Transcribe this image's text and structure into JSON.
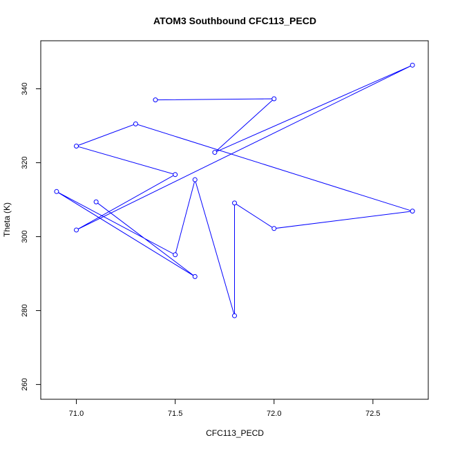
{
  "chart_data": {
    "type": "line",
    "title": "ATOM3 Southbound CFC113_PECD",
    "xlabel": "CFC113_PECD",
    "ylabel": "Theta (K)",
    "xlim": [
      70.82,
      72.78
    ],
    "ylim": [
      256,
      353
    ],
    "x_ticks": [
      71.0,
      71.5,
      72.0,
      72.5
    ],
    "x_tick_labels": [
      "71.0",
      "71.5",
      "72.0",
      "72.5"
    ],
    "y_ticks": [
      260,
      280,
      300,
      320,
      340
    ],
    "y_tick_labels": [
      "260",
      "280",
      "300",
      "320",
      "340"
    ],
    "grid": false,
    "markers": "open-circle",
    "series": [
      {
        "color": "#0000ff",
        "points": [
          {
            "x": 71.4,
            "y": 337.0
          },
          {
            "x": 72.0,
            "y": 337.3
          },
          {
            "x": 71.7,
            "y": 322.8
          },
          {
            "x": 72.7,
            "y": 346.4
          },
          {
            "x": 71.0,
            "y": 301.8
          },
          {
            "x": 71.5,
            "y": 316.8
          },
          {
            "x": 71.0,
            "y": 324.5
          },
          {
            "x": 71.3,
            "y": 330.5
          },
          {
            "x": 72.7,
            "y": 306.9
          },
          {
            "x": 72.0,
            "y": 302.2
          },
          {
            "x": 71.8,
            "y": 309.1
          },
          {
            "x": 71.8,
            "y": 278.6
          },
          {
            "x": 71.6,
            "y": 315.4
          },
          {
            "x": 71.5,
            "y": 295.1
          },
          {
            "x": 70.9,
            "y": 312.2
          },
          {
            "x": 71.6,
            "y": 289.2
          },
          {
            "x": 71.1,
            "y": 309.4
          }
        ]
      }
    ]
  }
}
